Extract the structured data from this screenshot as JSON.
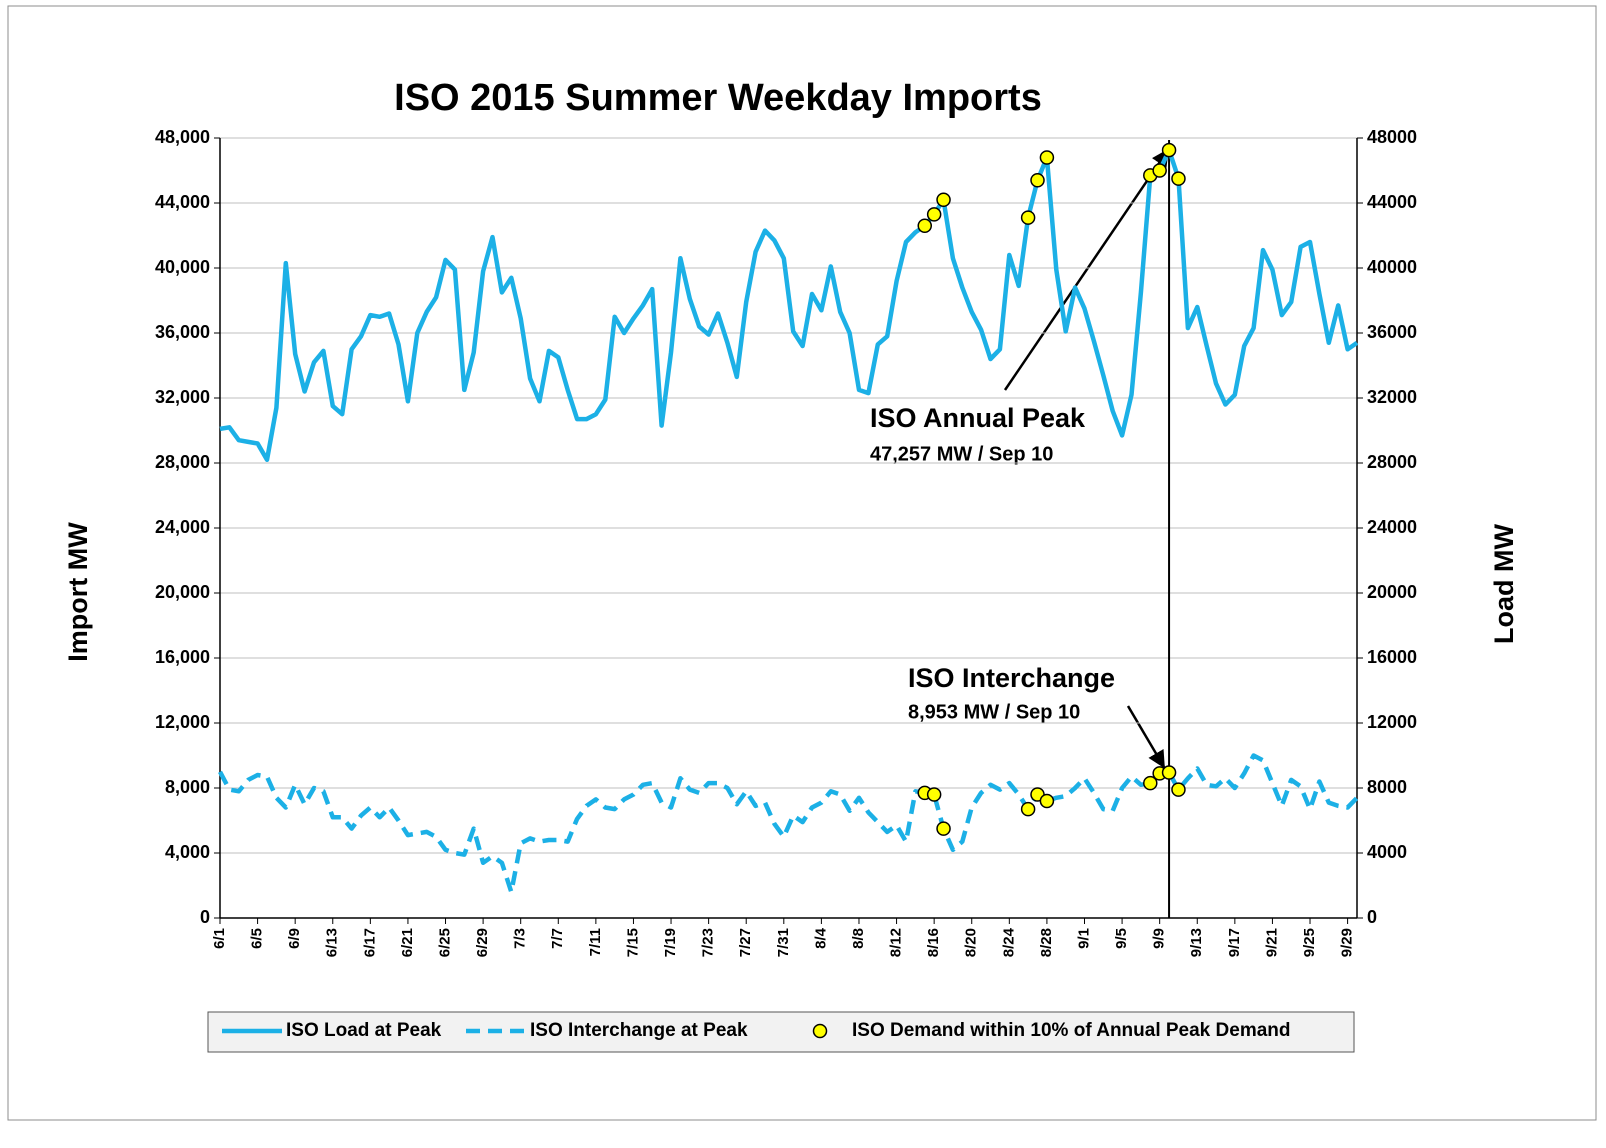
{
  "chart_data": {
    "type": "line",
    "title": "ISO 2015 Summer Weekday Imports",
    "ylabel": "Import MW",
    "y2label": "Load MW",
    "categories": [
      "6/1",
      null,
      null,
      null,
      "6/5",
      null,
      null,
      null,
      "6/9",
      null,
      null,
      null,
      "6/13",
      null,
      null,
      null,
      "6/17",
      null,
      null,
      null,
      "6/21",
      null,
      null,
      null,
      "6/25",
      null,
      null,
      null,
      "6/29",
      null,
      null,
      null,
      "7/3",
      null,
      null,
      null,
      "7/7",
      null,
      null,
      null,
      "7/11",
      null,
      null,
      null,
      "7/15",
      null,
      null,
      null,
      "7/19",
      null,
      null,
      null,
      "7/23",
      null,
      null,
      null,
      "7/27",
      null,
      null,
      null,
      "7/31",
      null,
      null,
      null,
      "8/4",
      null,
      null,
      null,
      "8/8",
      null,
      null,
      null,
      "8/12",
      null,
      null,
      null,
      "8/16",
      null,
      null,
      null,
      "8/20",
      null,
      null,
      null,
      "8/24",
      null,
      null,
      null,
      "8/28",
      null,
      null,
      null,
      "9/1",
      null,
      null,
      null,
      "9/5",
      null,
      null,
      null,
      "9/9",
      null,
      null,
      null,
      "9/13",
      null,
      null,
      null,
      "9/17",
      null,
      null,
      null,
      "9/21",
      null,
      null,
      null,
      "9/25",
      null,
      null,
      null,
      "9/29",
      null
    ],
    "series": [
      {
        "name": "ISO Load at Peak",
        "color": "#1cb0e6",
        "axis": "y2",
        "style": "solid",
        "values": [
          30100,
          30200,
          29400,
          29300,
          29200,
          28200,
          31400,
          40300,
          34700,
          32400,
          34200,
          34900,
          31500,
          31000,
          35000,
          35800,
          37100,
          37000,
          37200,
          35300,
          31800,
          36000,
          37300,
          38200,
          40500,
          39900,
          32500,
          34800,
          39800,
          41900,
          38500,
          39400,
          36900,
          33200,
          31800,
          34900,
          34500,
          32500,
          30700,
          30700,
          31000,
          31900,
          37000,
          36000,
          36900,
          37700,
          38700,
          30300,
          34800,
          40600,
          38100,
          36400,
          35900,
          37200,
          35400,
          33300,
          37900,
          41000,
          42300,
          41700,
          40600,
          36100,
          35200,
          38400,
          37400,
          40100,
          37300,
          36000,
          32500,
          32300,
          35300,
          35800,
          39200,
          41600,
          42200,
          42600,
          43300,
          44200,
          40600,
          38800,
          37300,
          36200,
          34400,
          35000,
          40800,
          38900,
          43100,
          45400,
          46800,
          39900,
          36100,
          38800,
          37500,
          35500,
          33400,
          31200,
          29700,
          32200,
          38500,
          45700,
          46000,
          47257,
          45500,
          36300,
          37600,
          35200,
          32900,
          31600,
          32200,
          35200,
          36300,
          41100,
          39900,
          37100,
          37900,
          41300,
          41600,
          38400,
          35400,
          37700,
          35000,
          35400
        ]
      },
      {
        "name": "ISO Interchange at Peak",
        "color": "#1cb0e6",
        "style": "dashed",
        "values": [
          9000,
          7900,
          7800,
          8500,
          8800,
          8700,
          7400,
          6800,
          8200,
          7000,
          8000,
          7800,
          6200,
          6200,
          5500,
          6300,
          6800,
          6200,
          6800,
          6000,
          5100,
          5200,
          5300,
          5000,
          4200,
          4000,
          3900,
          5500,
          3400,
          3800,
          3400,
          1600,
          4600,
          4900,
          4700,
          4800,
          4800,
          4700,
          6100,
          6900,
          7300,
          6800,
          6700,
          7300,
          7600,
          8200,
          8300,
          7100,
          6800,
          8600,
          7900,
          7700,
          8300,
          8300,
          8000,
          7000,
          7800,
          6900,
          7100,
          5800,
          5000,
          6300,
          5900,
          6800,
          7100,
          7800,
          7600,
          6600,
          7400,
          6500,
          5900,
          5300,
          5700,
          4700,
          7800,
          7700,
          7600,
          5500,
          4200,
          4700,
          6800,
          7700,
          8200,
          7900,
          8300,
          7600,
          6700,
          7600,
          7200,
          7400,
          7500,
          8000,
          8600,
          7700,
          6700,
          6600,
          8000,
          8700,
          8200,
          8300,
          8900,
          8953,
          7900,
          8600,
          9200,
          8200,
          8100,
          8600,
          8000,
          8900,
          10000,
          9700,
          8300,
          6900,
          8500,
          8100,
          6700,
          8400,
          7100,
          6900,
          6800,
          7400
        ]
      },
      {
        "name": "ISO Demand within 10% of Annual Peak Demand",
        "color": "#ffff00",
        "axis": "y2",
        "style": "markers",
        "values": [
          null,
          null,
          null,
          null,
          null,
          null,
          null,
          null,
          null,
          null,
          null,
          null,
          null,
          null,
          null,
          null,
          null,
          null,
          null,
          null,
          null,
          null,
          null,
          null,
          null,
          null,
          null,
          null,
          null,
          null,
          null,
          null,
          null,
          null,
          null,
          null,
          null,
          null,
          null,
          null,
          null,
          null,
          null,
          null,
          null,
          null,
          null,
          null,
          null,
          null,
          null,
          null,
          null,
          null,
          null,
          null,
          null,
          null,
          null,
          null,
          null,
          null,
          null,
          null,
          null,
          null,
          null,
          null,
          null,
          null,
          null,
          null,
          null,
          null,
          null,
          42600,
          43300,
          44200,
          null,
          null,
          null,
          null,
          null,
          null,
          null,
          null,
          43100,
          45400,
          46800,
          null,
          null,
          null,
          null,
          null,
          null,
          null,
          null,
          null,
          null,
          45700,
          46000,
          47257,
          45500,
          null,
          null,
          null,
          null,
          null,
          null,
          null,
          null,
          null,
          null,
          null,
          null,
          null,
          null,
          null,
          null,
          null,
          null,
          null
        ]
      }
    ],
    "ylim": [
      0,
      48000
    ],
    "yticks": [
      0,
      {
        "value": 4000,
        "label": "4,000"
      },
      {
        "value": 8000,
        "label": "8,000"
      },
      {
        "value": 12000,
        "label": "12,000"
      },
      {
        "value": 16000,
        "label": "16,000"
      },
      {
        "value": 20000,
        "label": "20,000"
      },
      {
        "value": 24000,
        "label": "24,000"
      },
      {
        "value": 28000,
        "label": "28,000"
      },
      {
        "value": 32000,
        "label": "32,000"
      },
      {
        "value": 36000,
        "label": "36,000"
      },
      {
        "value": 40000,
        "label": "40,000"
      },
      {
        "value": 44000,
        "label": "44,000"
      },
      {
        "value": 48000,
        "label": "48,000"
      }
    ],
    "y2lim": [
      0,
      48000
    ],
    "y2ticks": [
      0,
      4000,
      8000,
      12000,
      16000,
      20000,
      24000,
      28000,
      32000,
      36000,
      40000,
      44000,
      48000
    ],
    "grid": true,
    "legend": "bottom",
    "annotations": [
      {
        "text": "ISO Annual Peak"
      },
      {
        "text": "47,257 MW / Sep 10"
      },
      {
        "text": "ISO Interchange"
      },
      {
        "text": "8,953 MW / Sep 10"
      }
    ]
  }
}
